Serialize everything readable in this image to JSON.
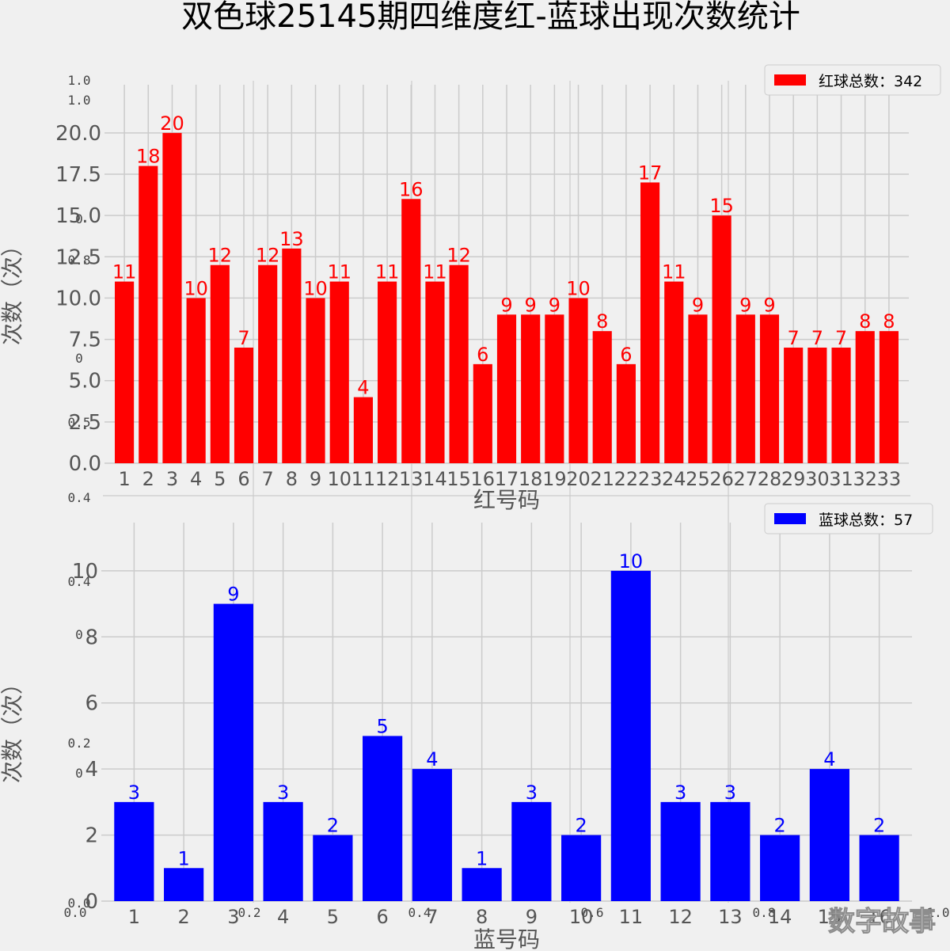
{
  "title": "双色球25145期四维度红-蓝球出现次数统计",
  "watermark": "数字故事",
  "colors": {
    "background": "#f0f0f0",
    "grid": "#cbcbcb",
    "red": "#ff0000",
    "blue": "#0000ff",
    "text": "#555555"
  },
  "overlay_ticks": {
    "y_labels": [
      "1.0",
      "1.0",
      "0",
      "0.8",
      "0",
      "0.5",
      "0.4",
      "0.4",
      "0",
      "0.2",
      "0",
      "0.0"
    ],
    "x_labels": [
      "0.0",
      "0.2",
      "0.4",
      "0.6",
      "0.8",
      "1.0"
    ]
  },
  "chart_data": [
    {
      "type": "bar",
      "xlabel": "红号码",
      "ylabel": "次数（次）",
      "legend": "红球总数：342",
      "legend_position": "top-right",
      "grid": true,
      "ylim": [
        0,
        21
      ],
      "yticks": [
        "0.0",
        "2.5",
        "5.0",
        "7.5",
        "10.0",
        "12.5",
        "15.0",
        "17.5",
        "20.0"
      ],
      "categories": [
        "1",
        "2",
        "3",
        "4",
        "5",
        "6",
        "7",
        "8",
        "9",
        "10",
        "11",
        "12",
        "13",
        "14",
        "15",
        "16",
        "17",
        "18",
        "19",
        "20",
        "21",
        "22",
        "23",
        "24",
        "25",
        "26",
        "27",
        "28",
        "29",
        "30",
        "31",
        "32",
        "33"
      ],
      "values": [
        11,
        18,
        20,
        10,
        12,
        7,
        12,
        13,
        10,
        11,
        4,
        11,
        16,
        11,
        12,
        6,
        9,
        9,
        9,
        10,
        8,
        6,
        17,
        11,
        9,
        15,
        9,
        9,
        7,
        7,
        7,
        8,
        8
      ],
      "color": "#ff0000"
    },
    {
      "type": "bar",
      "xlabel": "蓝号码",
      "ylabel": "次数（次）",
      "legend": "蓝球总数：57",
      "legend_position": "top-right",
      "grid": true,
      "ylim": [
        0,
        10.5
      ],
      "yticks": [
        "0",
        "2",
        "4",
        "6",
        "8",
        "10"
      ],
      "categories": [
        "1",
        "2",
        "3",
        "4",
        "5",
        "6",
        "7",
        "8",
        "9",
        "10",
        "11",
        "12",
        "13",
        "14",
        "15",
        "16"
      ],
      "values": [
        3,
        1,
        9,
        3,
        2,
        5,
        4,
        1,
        3,
        2,
        10,
        3,
        3,
        2,
        4,
        2
      ],
      "color": "#0000ff"
    }
  ]
}
